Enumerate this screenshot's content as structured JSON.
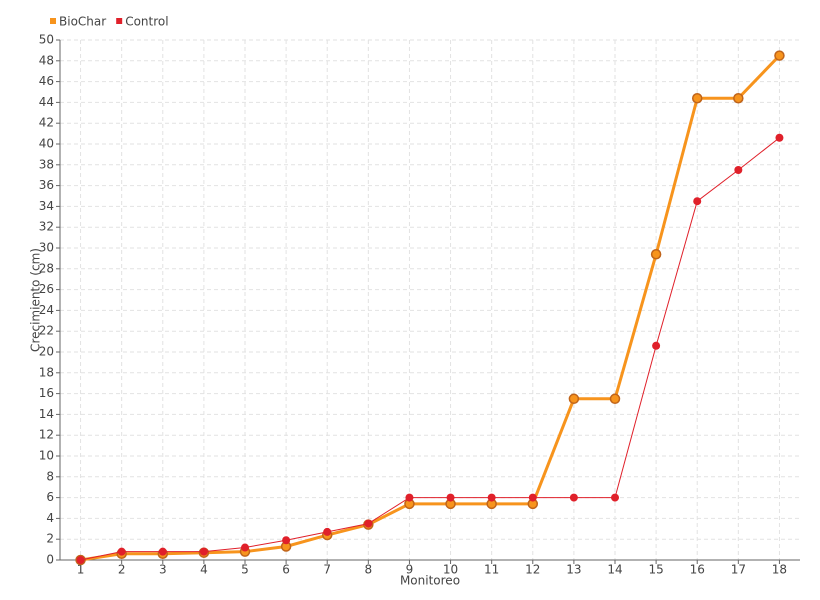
{
  "chart_data": {
    "type": "line",
    "x_label": "Monitoreo",
    "y_label": "Crecimiento (cm)",
    "categories": [
      "1",
      "2",
      "3",
      "4",
      "5",
      "6",
      "7",
      "8",
      "9",
      "10",
      "11",
      "12",
      "13",
      "14",
      "15",
      "16",
      "17",
      "18"
    ],
    "series": [
      {
        "name": "BioChar",
        "color": "#f7941d",
        "values": [
          0,
          0.6,
          0.6,
          0.7,
          0.8,
          1.3,
          2.4,
          3.4,
          5.4,
          5.4,
          5.4,
          5.4,
          15.5,
          15.5,
          29.4,
          44.4,
          44.4,
          48.5
        ]
      },
      {
        "name": "Control",
        "color": "#e0202a",
        "values": [
          0,
          0.8,
          0.8,
          0.8,
          1.2,
          1.9,
          2.7,
          3.5,
          6,
          6,
          6,
          6,
          6,
          6,
          20.6,
          34.5,
          37.5,
          40.6
        ]
      }
    ],
    "ylim": [
      0,
      50
    ],
    "yticks": [
      0,
      2,
      4,
      6,
      8,
      10,
      12,
      14,
      16,
      18,
      20,
      22,
      24,
      26,
      28,
      30,
      32,
      34,
      36,
      38,
      40,
      42,
      44,
      46,
      48,
      50
    ],
    "grid": true,
    "legend": "top-left"
  }
}
